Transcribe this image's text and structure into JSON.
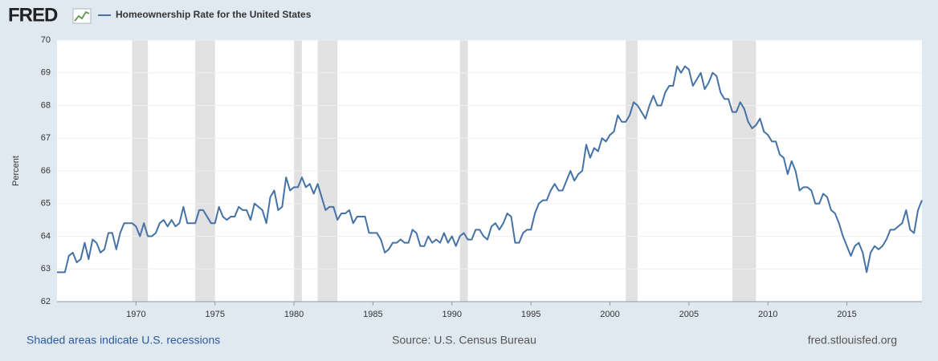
{
  "header": {
    "logo": "FRED"
  },
  "chart_data": {
    "type": "line",
    "y_label": "Percent",
    "x": [
      1965,
      1965.25,
      1965.5,
      1965.75,
      1966,
      1966.25,
      1966.5,
      1966.75,
      1967,
      1967.25,
      1967.5,
      1967.75,
      1968,
      1968.25,
      1968.5,
      1968.75,
      1969,
      1969.25,
      1969.5,
      1969.75,
      1970,
      1970.25,
      1970.5,
      1970.75,
      1971,
      1971.25,
      1971.5,
      1971.75,
      1972,
      1972.25,
      1972.5,
      1972.75,
      1973,
      1973.25,
      1973.5,
      1973.75,
      1974,
      1974.25,
      1974.5,
      1974.75,
      1975,
      1975.25,
      1975.5,
      1975.75,
      1976,
      1976.25,
      1976.5,
      1976.75,
      1977,
      1977.25,
      1977.5,
      1977.75,
      1978,
      1978.25,
      1978.5,
      1978.75,
      1979,
      1979.25,
      1979.5,
      1979.75,
      1980,
      1980.25,
      1980.5,
      1980.75,
      1981,
      1981.25,
      1981.5,
      1981.75,
      1982,
      1982.25,
      1982.5,
      1982.75,
      1983,
      1983.25,
      1983.5,
      1983.75,
      1984,
      1984.25,
      1984.5,
      1984.75,
      1985,
      1985.25,
      1985.5,
      1985.75,
      1986,
      1986.25,
      1986.5,
      1986.75,
      1987,
      1987.25,
      1987.5,
      1987.75,
      1988,
      1988.25,
      1988.5,
      1988.75,
      1989,
      1989.25,
      1989.5,
      1989.75,
      1990,
      1990.25,
      1990.5,
      1990.75,
      1991,
      1991.25,
      1991.5,
      1991.75,
      1992,
      1992.25,
      1992.5,
      1992.75,
      1993,
      1993.25,
      1993.5,
      1993.75,
      1994,
      1994.25,
      1994.5,
      1994.75,
      1995,
      1995.25,
      1995.5,
      1995.75,
      1996,
      1996.25,
      1996.5,
      1996.75,
      1997,
      1997.25,
      1997.5,
      1997.75,
      1998,
      1998.25,
      1998.5,
      1998.75,
      1999,
      1999.25,
      1999.5,
      1999.75,
      2000,
      2000.25,
      2000.5,
      2000.75,
      2001,
      2001.25,
      2001.5,
      2001.75,
      2002,
      2002.25,
      2002.5,
      2002.75,
      2003,
      2003.25,
      2003.5,
      2003.75,
      2004,
      2004.25,
      2004.5,
      2004.75,
      2005,
      2005.25,
      2005.5,
      2005.75,
      2006,
      2006.25,
      2006.5,
      2006.75,
      2007,
      2007.25,
      2007.5,
      2007.75,
      2008,
      2008.25,
      2008.5,
      2008.75,
      2009,
      2009.25,
      2009.5,
      2009.75,
      2010,
      2010.25,
      2010.5,
      2010.75,
      2011,
      2011.25,
      2011.5,
      2011.75,
      2012,
      2012.25,
      2012.5,
      2012.75,
      2013,
      2013.25,
      2013.5,
      2013.75,
      2014,
      2014.25,
      2014.5,
      2014.75,
      2015,
      2015.25,
      2015.5,
      2015.75,
      2016,
      2016.25,
      2016.5,
      2016.75,
      2017,
      2017.25,
      2017.5,
      2017.75,
      2018,
      2018.25,
      2018.5,
      2018.75,
      2019,
      2019.25,
      2019.5,
      2019.75
    ],
    "series": [
      {
        "name": "Homeownership Rate for the United States",
        "color": "#4572a7",
        "values": [
          62.9,
          62.9,
          62.9,
          63.4,
          63.5,
          63.2,
          63.3,
          63.8,
          63.3,
          63.9,
          63.8,
          63.5,
          63.6,
          64.1,
          64.1,
          63.6,
          64.1,
          64.4,
          64.4,
          64.4,
          64.3,
          64.0,
          64.4,
          64.0,
          64.0,
          64.1,
          64.4,
          64.5,
          64.3,
          64.5,
          64.3,
          64.4,
          64.9,
          64.4,
          64.4,
          64.4,
          64.8,
          64.8,
          64.6,
          64.4,
          64.4,
          64.9,
          64.6,
          64.5,
          64.6,
          64.6,
          64.9,
          64.8,
          64.8,
          64.5,
          65.0,
          64.9,
          64.8,
          64.4,
          65.2,
          65.4,
          64.8,
          64.9,
          65.8,
          65.4,
          65.5,
          65.5,
          65.8,
          65.5,
          65.6,
          65.3,
          65.6,
          65.2,
          64.8,
          64.9,
          64.9,
          64.5,
          64.7,
          64.7,
          64.8,
          64.4,
          64.6,
          64.6,
          64.6,
          64.1,
          64.1,
          64.1,
          63.9,
          63.5,
          63.6,
          63.8,
          63.8,
          63.9,
          63.8,
          63.8,
          64.2,
          64.1,
          63.7,
          63.7,
          64.0,
          63.8,
          63.9,
          63.8,
          64.1,
          63.8,
          64.0,
          63.7,
          64.0,
          64.1,
          63.9,
          63.9,
          64.2,
          64.2,
          64.0,
          63.9,
          64.3,
          64.4,
          64.2,
          64.4,
          64.7,
          64.6,
          63.8,
          63.8,
          64.1,
          64.2,
          64.2,
          64.7,
          65.0,
          65.1,
          65.1,
          65.4,
          65.6,
          65.4,
          65.4,
          65.7,
          66.0,
          65.7,
          65.9,
          66.0,
          66.8,
          66.4,
          66.7,
          66.6,
          67.0,
          66.9,
          67.1,
          67.2,
          67.7,
          67.5,
          67.5,
          67.7,
          68.1,
          68.0,
          67.8,
          67.6,
          68.0,
          68.3,
          68.0,
          68.0,
          68.4,
          68.6,
          68.6,
          69.2,
          69.0,
          69.2,
          69.1,
          68.6,
          68.8,
          69.0,
          68.5,
          68.7,
          69.0,
          68.9,
          68.4,
          68.2,
          68.2,
          67.8,
          67.8,
          68.1,
          67.9,
          67.5,
          67.3,
          67.4,
          67.6,
          67.2,
          67.1,
          66.9,
          66.9,
          66.5,
          66.4,
          65.9,
          66.3,
          66.0,
          65.4,
          65.5,
          65.5,
          65.4,
          65.0,
          65.0,
          65.3,
          65.2,
          64.8,
          64.7,
          64.4,
          64.0,
          63.7,
          63.4,
          63.7,
          63.8,
          63.5,
          62.9,
          63.5,
          63.7,
          63.6,
          63.7,
          63.9,
          64.2,
          64.2,
          64.3,
          64.4,
          64.8,
          64.2,
          64.1,
          64.8,
          65.1
        ]
      }
    ],
    "xlim": [
      1965,
      2019.75
    ],
    "ylim": [
      62,
      70
    ],
    "xticks": [
      1970,
      1975,
      1980,
      1985,
      1990,
      1995,
      2000,
      2005,
      2010,
      2015
    ],
    "yticks": [
      62,
      63,
      64,
      65,
      66,
      67,
      68,
      69,
      70
    ],
    "recessions": [
      [
        1969.75,
        1970.75
      ],
      [
        1973.75,
        1975.0
      ],
      [
        1980.0,
        1980.5
      ],
      [
        1981.5,
        1982.75
      ],
      [
        1990.5,
        1991.0
      ],
      [
        2001.0,
        2001.75
      ],
      [
        2007.75,
        2009.25
      ]
    ],
    "recession_color": "#e1e1e1"
  },
  "footer": {
    "note": "Shaded areas indicate U.S. recessions",
    "source": "Source: U.S. Census Bureau",
    "site": "fred.stlouisfed.org"
  }
}
